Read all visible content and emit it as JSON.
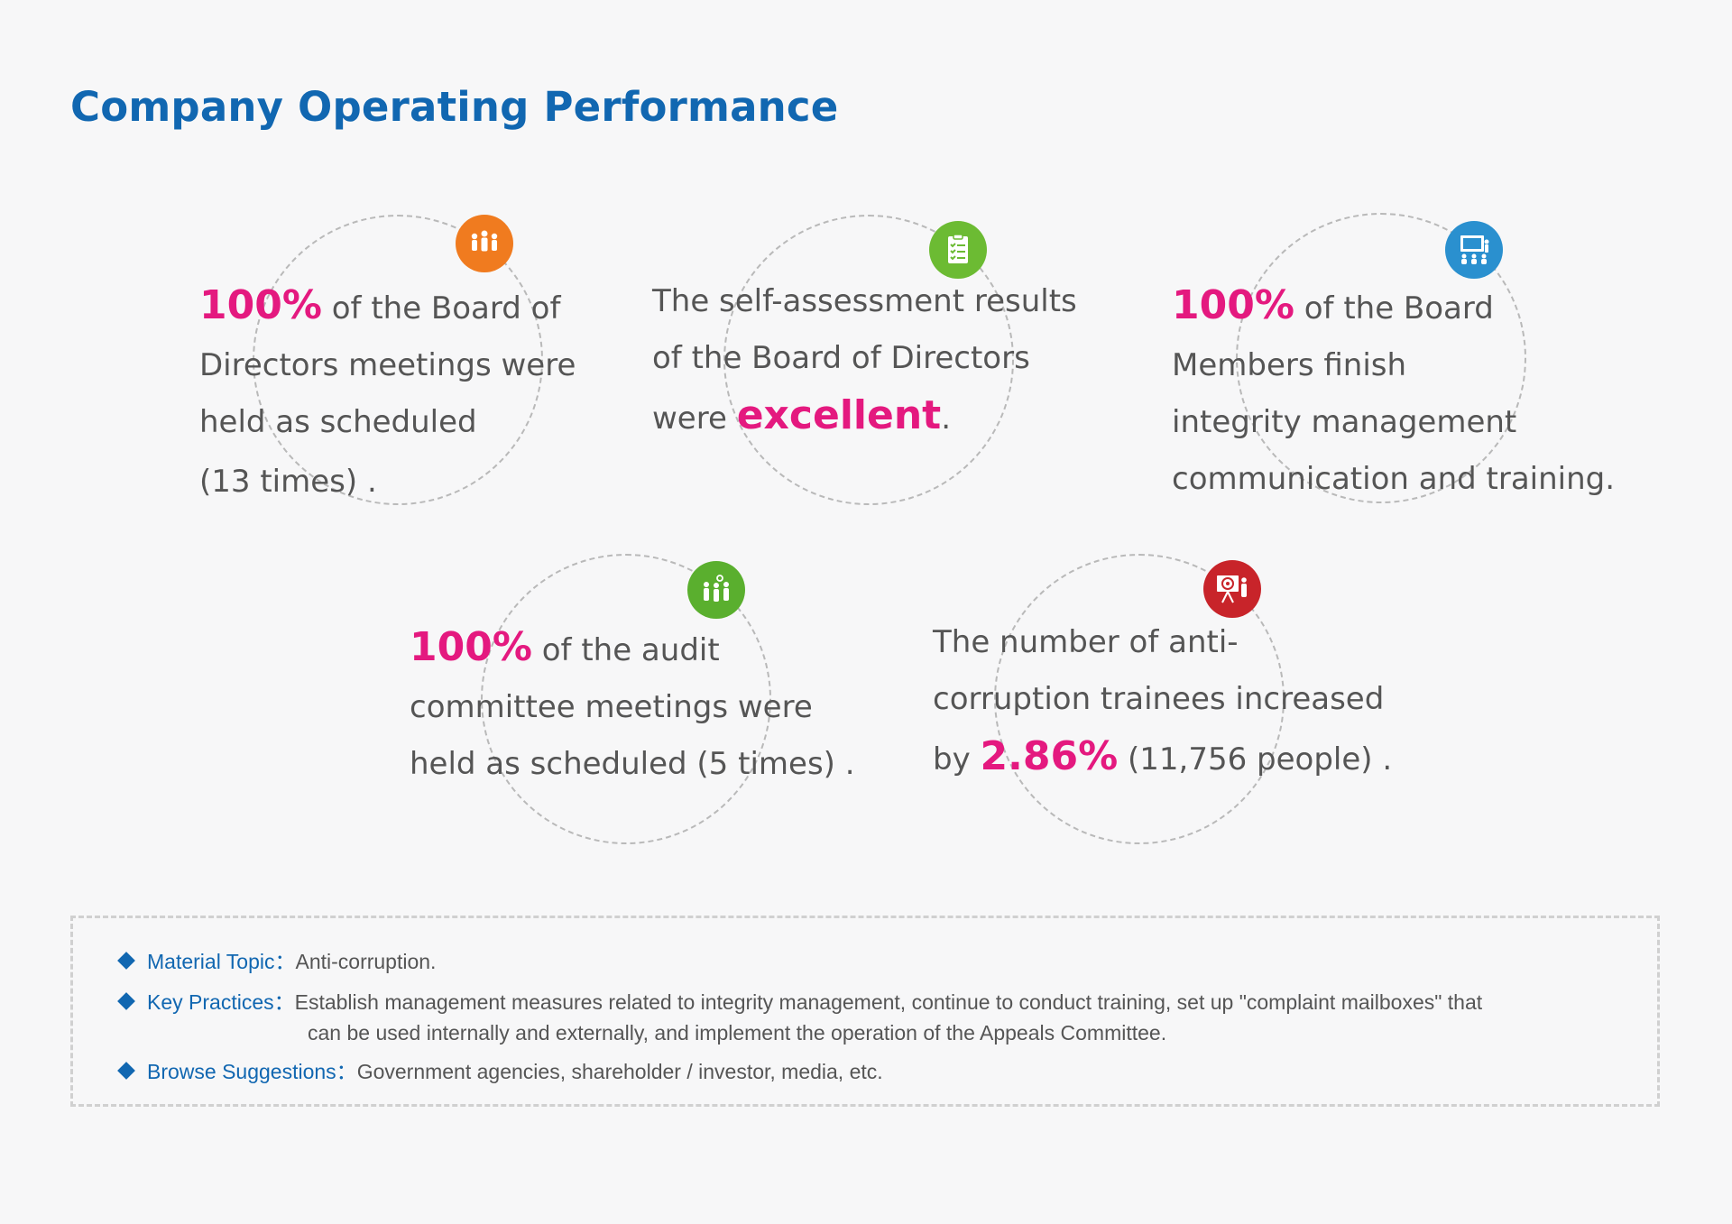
{
  "page": {
    "title": "Company Operating Performance"
  },
  "colors": {
    "title_blue": "#1167b1",
    "highlight_pink": "#e4197f",
    "text_gray": "#555555"
  },
  "stats": [
    {
      "icon": "board-meeting-people-icon",
      "badge_color": "#f07b1f",
      "highlight": "100%",
      "line1": " of the Board of",
      "line2": "Directors meetings were",
      "line3": "held as scheduled",
      "line4": " (13 times) ."
    },
    {
      "icon": "checklist-clipboard-icon",
      "badge_color": "#6cbb33",
      "line1": "The self-assessment results",
      "line2": "of the Board of Directors",
      "line3_prefix": "were ",
      "highlight": "excellent",
      "line3_suffix": "."
    },
    {
      "icon": "presentation-training-icon",
      "badge_color": "#2a90cf",
      "highlight": "100%",
      "line1": " of the Board",
      "line2": "Members finish",
      "line3": "integrity management",
      "line4": "communication and training."
    },
    {
      "icon": "audit-committee-people-icon",
      "badge_color": "#5aaf2e",
      "highlight": "100%",
      "line1": " of the audit",
      "line2": "committee meetings were",
      "line3": "held as scheduled (5 times) ."
    },
    {
      "icon": "target-presentation-icon",
      "badge_color": "#c8242a",
      "line1": "The number of anti-",
      "line2": "corruption trainees increased",
      "line3_prefix": "by ",
      "highlight": "2.86%",
      "line3_suffix": " (11,756 people) ."
    }
  ],
  "info": {
    "material_topic_label": "Material Topic：",
    "material_topic_text": "Anti-corruption.",
    "key_practices_label": "Key Practices：",
    "key_practices_text_1": "Establish management measures related to integrity management, continue to conduct training, set up \"complaint mailboxes\" that",
    "key_practices_text_2": "can be used internally and externally, and implement the operation of the Appeals Committee.",
    "browse_label": "Browse Suggestions：",
    "browse_text": "Government agencies, shareholder / investor, media, etc."
  }
}
